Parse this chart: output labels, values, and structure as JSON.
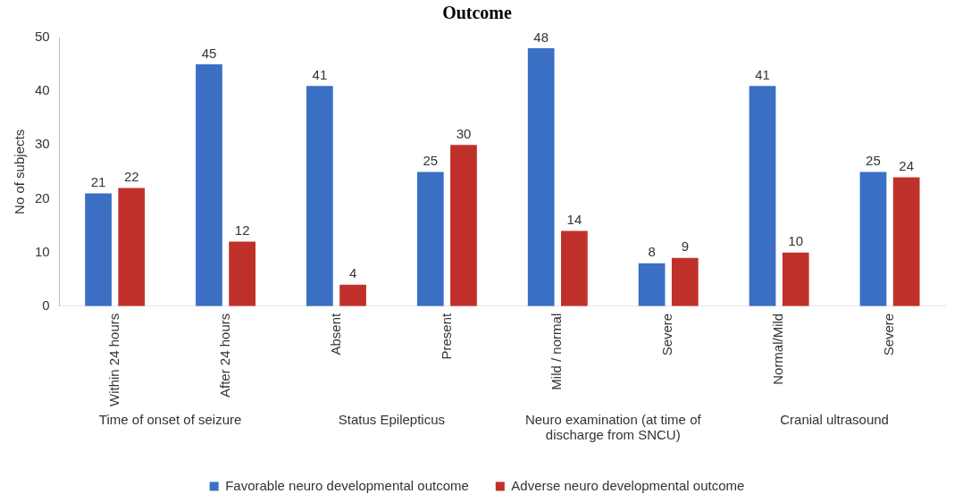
{
  "chart_data": {
    "type": "bar",
    "title": "Outcome",
    "ylabel": "No of subjects",
    "categories": [
      "Within 24 hours",
      "After 24 hours",
      "Absent",
      "Present",
      "Mild / normal",
      "Severe",
      "Normal/Mild",
      "Severe"
    ],
    "series": [
      {
        "name": "Favorable neuro developmental outcome",
        "color": "#3a6fc4",
        "values": [
          21,
          45,
          41,
          25,
          48,
          8,
          41,
          25
        ]
      },
      {
        "name": "Adverse neuro developmental outcome",
        "color": "#c0302a",
        "values": [
          22,
          12,
          4,
          30,
          14,
          9,
          10,
          24
        ]
      }
    ],
    "annotations": [
      "Time of onset of seizure",
      "Status Epilepticus",
      "Neuro examination (at time of discharge from SNCU)",
      "Cranial ultrasound"
    ],
    "ylim": [
      0,
      50
    ],
    "yticks": [
      0,
      10,
      20,
      30,
      40,
      50
    ],
    "grid": false,
    "legend": "bottom",
    "data_labels": true
  }
}
